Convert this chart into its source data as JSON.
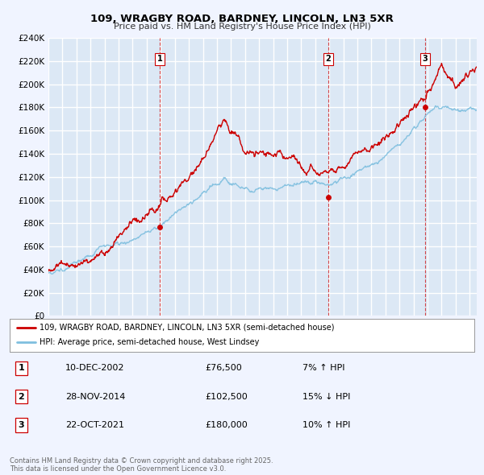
{
  "title": "109, WRAGBY ROAD, BARDNEY, LINCOLN, LN3 5XR",
  "subtitle": "Price paid vs. HM Land Registry's House Price Index (HPI)",
  "bg_color": "#f0f4ff",
  "plot_bg_color": "#dce8f5",
  "grid_color": "#ffffff",
  "line1_color": "#cc0000",
  "line2_color": "#7fbfdf",
  "vline_color": "#cc0000",
  "ylim": [
    0,
    240000
  ],
  "yticks": [
    0,
    20000,
    40000,
    60000,
    80000,
    100000,
    120000,
    140000,
    160000,
    180000,
    200000,
    220000,
    240000
  ],
  "transactions": [
    {
      "label": "1",
      "date": "10-DEC-2002",
      "price": 76500,
      "hpi_diff": "7% ↑ HPI",
      "year": 2002.94
    },
    {
      "label": "2",
      "date": "28-NOV-2014",
      "price": 102500,
      "hpi_diff": "15% ↓ HPI",
      "year": 2014.92
    },
    {
      "label": "3",
      "date": "22-OCT-2021",
      "price": 180000,
      "hpi_diff": "10% ↑ HPI",
      "year": 2021.81
    }
  ],
  "legend_line1": "109, WRAGBY ROAD, BARDNEY, LINCOLN, LN3 5XR (semi-detached house)",
  "legend_line2": "HPI: Average price, semi-detached house, West Lindsey",
  "footer": "Contains HM Land Registry data © Crown copyright and database right 2025.\nThis data is licensed under the Open Government Licence v3.0.",
  "xmin": 1995,
  "xmax": 2025.5
}
